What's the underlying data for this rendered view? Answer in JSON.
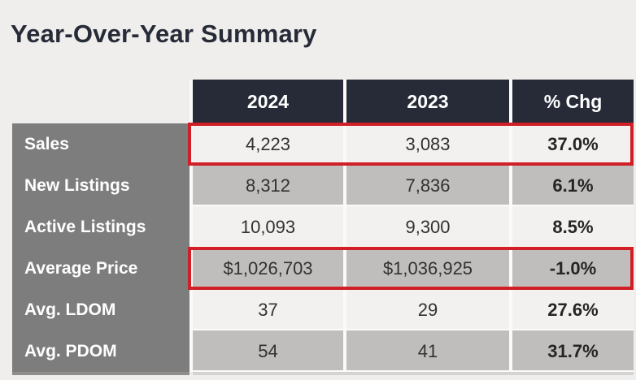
{
  "title": "Year-Over-Year Summary",
  "chart_data": {
    "type": "table",
    "title": "Year-Over-Year Summary",
    "columns": [
      "2024",
      "2023",
      "% Chg"
    ],
    "rows": [
      {
        "label": "Sales",
        "v2024": "4,223",
        "v2023": "3,083",
        "chg": "37.0%",
        "highlighted": true
      },
      {
        "label": "New Listings",
        "v2024": "8,312",
        "v2023": "7,836",
        "chg": "6.1%",
        "highlighted": false
      },
      {
        "label": "Active Listings",
        "v2024": "10,093",
        "v2023": "9,300",
        "chg": "8.5%",
        "highlighted": false
      },
      {
        "label": "Average Price",
        "v2024": "$1,026,703",
        "v2023": "$1,036,925",
        "chg": "-1.0%",
        "highlighted": true
      },
      {
        "label": "Avg. LDOM",
        "v2024": "37",
        "v2023": "29",
        "chg": "27.6%",
        "highlighted": false
      },
      {
        "label": "Avg. PDOM",
        "v2024": "54",
        "v2023": "41",
        "chg": "31.7%",
        "highlighted": false
      }
    ],
    "layout_hints": {
      "row_shading_order": [
        "light",
        "gray",
        "light",
        "gray",
        "light",
        "gray"
      ],
      "highlight_style": "red-outline-around-value-cells"
    }
  },
  "colors": {
    "background": "#efeeed",
    "title": "#262b37",
    "header_bg": "#262b37",
    "header_fg": "#ffffff",
    "label_bg": "#7e7d7d",
    "label_fg": "#ffffff",
    "row_light": "#f2f1ef",
    "row_gray": "#bfbebc",
    "highlight_red": "#d01f27",
    "value_text": "#333231"
  }
}
